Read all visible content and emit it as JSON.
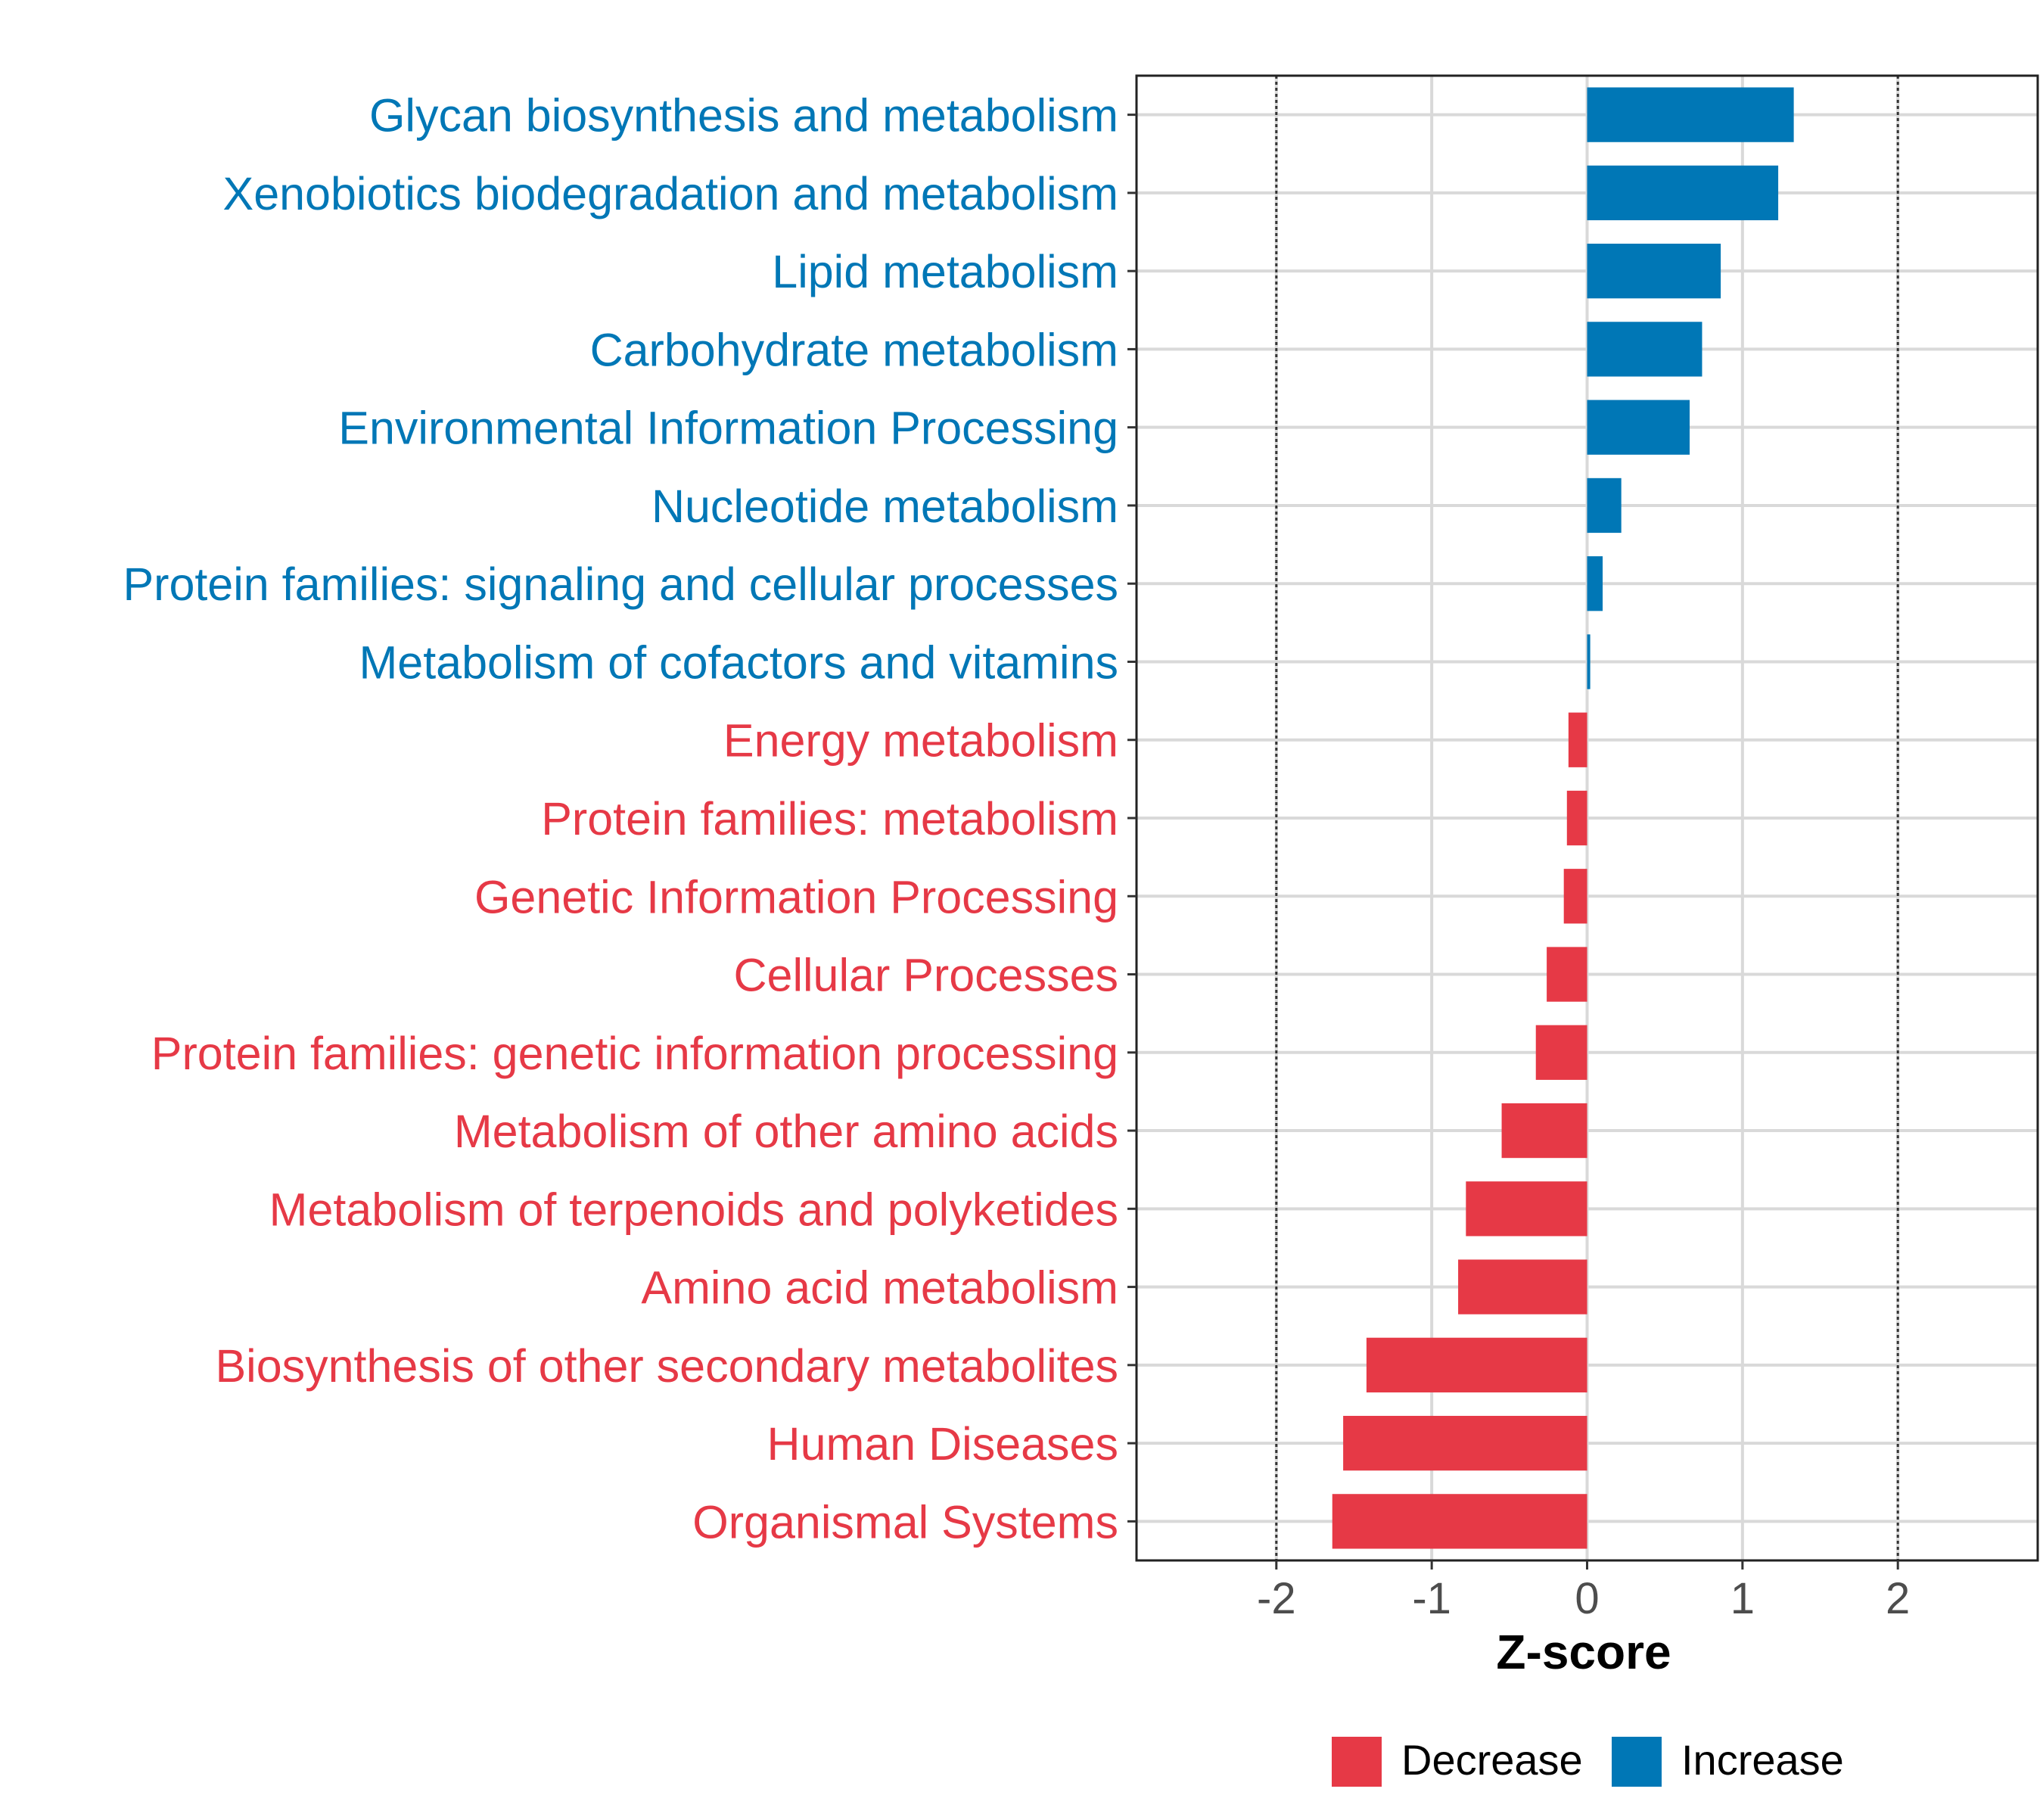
{
  "chart_data": {
    "type": "bar",
    "orientation": "horizontal",
    "title": "",
    "xlabel": "Z-score",
    "ylabel": "",
    "xlim": [
      -2.9,
      2.9
    ],
    "xticks": [
      -2,
      -1,
      0,
      1,
      2
    ],
    "reference_lines": [
      -2,
      2
    ],
    "grid": true,
    "legend_position": "bottom",
    "colors": {
      "Decrease": "#E63946",
      "Increase": "#0077B6"
    },
    "legend": [
      {
        "label": "Decrease",
        "color": "#E63946"
      },
      {
        "label": "Increase",
        "color": "#0077B6"
      }
    ],
    "categories": [
      "Glycan biosynthesis and metabolism",
      "Xenobiotics biodegradation and metabolism",
      "Lipid metabolism",
      "Carbohydrate metabolism",
      "Environmental Information Processing",
      "Nucleotide metabolism",
      "Protein families: signaling and cellular processes",
      "Metabolism of cofactors and vitamins",
      "Energy metabolism",
      "Protein families: metabolism",
      "Genetic Information Processing",
      "Cellular Processes",
      "Protein families: genetic information processing",
      "Metabolism of other amino acids",
      "Metabolism of terpenoids and polyketides",
      "Amino acid metabolism",
      "Biosynthesis of other secondary metabolites",
      "Human Diseases",
      "Organismal Systems"
    ],
    "values": [
      1.33,
      1.23,
      0.86,
      0.74,
      0.66,
      0.22,
      0.1,
      0.02,
      -0.12,
      -0.13,
      -0.15,
      -0.26,
      -0.33,
      -0.55,
      -0.78,
      -0.83,
      -1.42,
      -1.57,
      -1.64
    ],
    "groups": [
      "Increase",
      "Increase",
      "Increase",
      "Increase",
      "Increase",
      "Increase",
      "Increase",
      "Increase",
      "Decrease",
      "Decrease",
      "Decrease",
      "Decrease",
      "Decrease",
      "Decrease",
      "Decrease",
      "Decrease",
      "Decrease",
      "Decrease",
      "Decrease"
    ]
  }
}
